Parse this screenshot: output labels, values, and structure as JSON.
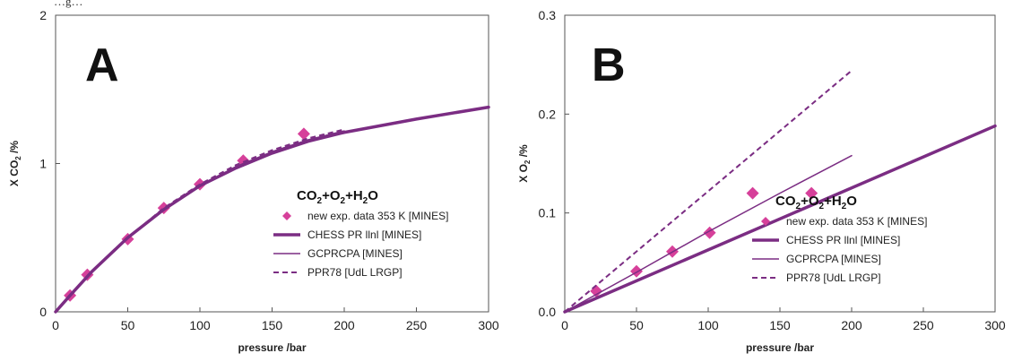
{
  "header_text": "…g…",
  "colors": {
    "series": "#7b2d83",
    "marker": "#d6409a",
    "axis": "#555555",
    "text": "#222222"
  },
  "chart_data": [
    {
      "type": "line",
      "panel_label": "A",
      "xlabel": "pressure /bar",
      "ylabel": "X CO2 /%",
      "ylabel_parts": {
        "main": "X CO",
        "sub": "2",
        "rest": " /%"
      },
      "xlim": [
        0,
        300
      ],
      "ylim": [
        0,
        2
      ],
      "xticks": [
        0,
        50,
        100,
        150,
        200,
        250,
        300
      ],
      "yticks": [
        0,
        1,
        2
      ],
      "ytick_labels": [
        "0",
        "1",
        "2"
      ],
      "grid": false,
      "legend_position": "lower-right",
      "legend_title_parts": [
        "CO",
        "2",
        "+O",
        "2",
        "+H",
        "2",
        "O"
      ],
      "series": [
        {
          "name": "new exp. data 353 K [MINES]",
          "style": "marker",
          "x": [
            10,
            22,
            50,
            75,
            100,
            130,
            172
          ],
          "y": [
            0.11,
            0.25,
            0.49,
            0.7,
            0.86,
            1.02,
            1.2
          ]
        },
        {
          "name": "CHESS PR llnl [MINES]",
          "style": "thick",
          "x": [
            0,
            10,
            25,
            50,
            75,
            100,
            125,
            150,
            175,
            200,
            250,
            300
          ],
          "y": [
            0,
            0.11,
            0.27,
            0.5,
            0.69,
            0.85,
            0.97,
            1.07,
            1.15,
            1.21,
            1.3,
            1.38
          ]
        },
        {
          "name": "GCPRCPA [MINES]",
          "style": "thin",
          "x": [
            0,
            10,
            25,
            50,
            75,
            100,
            125,
            150,
            175,
            200
          ],
          "y": [
            0,
            0.11,
            0.27,
            0.5,
            0.69,
            0.85,
            0.98,
            1.08,
            1.16,
            1.22
          ]
        },
        {
          "name": "PPR78 [UdL LRGP]",
          "style": "dashed",
          "x": [
            0,
            10,
            25,
            50,
            75,
            100,
            125,
            150,
            175,
            200
          ],
          "y": [
            0,
            0.11,
            0.27,
            0.5,
            0.7,
            0.86,
            0.99,
            1.09,
            1.17,
            1.23
          ]
        }
      ]
    },
    {
      "type": "line",
      "panel_label": "B",
      "xlabel": "pressure /bar",
      "ylabel": "X O2 /%",
      "ylabel_parts": {
        "main": "X O",
        "sub": "2",
        "rest": " /%"
      },
      "xlim": [
        0,
        300
      ],
      "ylim": [
        0,
        0.3
      ],
      "xticks": [
        0,
        50,
        100,
        150,
        200,
        250,
        300
      ],
      "yticks": [
        0,
        0.1,
        0.2,
        0.3
      ],
      "ytick_labels": [
        "0.0",
        "0.1",
        "0.2",
        "0.3"
      ],
      "grid": false,
      "legend_position": "lower-right",
      "legend_title_parts": [
        "CO",
        "2",
        "+O",
        "2",
        "+H",
        "2",
        "O"
      ],
      "series": [
        {
          "name": "new exp. data 353 K [MINES]",
          "style": "marker",
          "x": [
            22,
            50,
            75,
            101,
            131,
            172
          ],
          "y": [
            0.021,
            0.041,
            0.061,
            0.08,
            0.12,
            0.12
          ]
        },
        {
          "name": "CHESS PR llnl [MINES]",
          "style": "thick",
          "x": [
            0,
            300
          ],
          "y": [
            0,
            0.188
          ]
        },
        {
          "name": "GCPRCPA [MINES]",
          "style": "thin",
          "x": [
            0,
            50,
            100,
            150,
            200
          ],
          "y": [
            0,
            0.04,
            0.081,
            0.12,
            0.158
          ]
        },
        {
          "name": "PPR78 [UdL LRGP]",
          "style": "dashed",
          "x": [
            0,
            200
          ],
          "y": [
            0,
            0.244
          ]
        }
      ]
    }
  ]
}
